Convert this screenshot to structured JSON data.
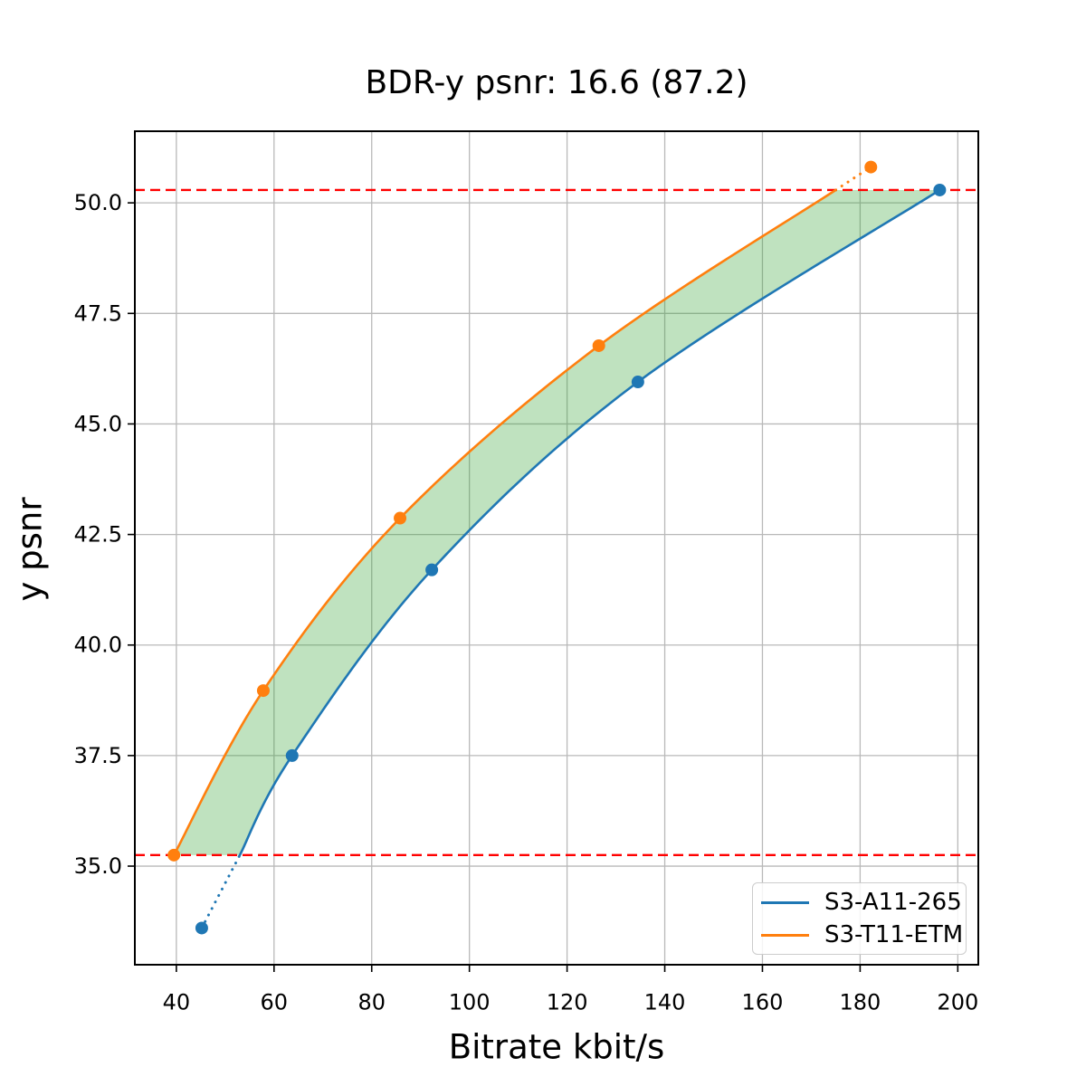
{
  "figure": {
    "background": "#ffffff",
    "axes_border_color": "#000000"
  },
  "chart_data": {
    "type": "line",
    "title": "BDR-y psnr: 16.6 (87.2)",
    "xlabel": "Bitrate kbit/s",
    "ylabel": "y psnr",
    "xlim": [
      31.5,
      204.2
    ],
    "ylim": [
      32.77,
      51.62
    ],
    "grid": true,
    "grid_color": "#b9b9b9",
    "legend_position": "lower right",
    "xticks": [
      {
        "value": 40,
        "label": "40"
      },
      {
        "value": 60,
        "label": "60"
      },
      {
        "value": 80,
        "label": "80"
      },
      {
        "value": 100,
        "label": "100"
      },
      {
        "value": 120,
        "label": "120"
      },
      {
        "value": 140,
        "label": "140"
      },
      {
        "value": 160,
        "label": "160"
      },
      {
        "value": 180,
        "label": "180"
      },
      {
        "value": 200,
        "label": "200"
      }
    ],
    "yticks": [
      {
        "value": 35.0,
        "label": "35.0"
      },
      {
        "value": 37.5,
        "label": "37.5"
      },
      {
        "value": 40.0,
        "label": "40.0"
      },
      {
        "value": 42.5,
        "label": "42.5"
      },
      {
        "value": 45.0,
        "label": "45.0"
      },
      {
        "value": 47.5,
        "label": "47.5"
      },
      {
        "value": 50.0,
        "label": "50.0"
      }
    ],
    "hlines": [
      {
        "y": 35.25,
        "color": "#ff0000",
        "style": "dashed"
      },
      {
        "y": 50.29,
        "color": "#ff0000",
        "style": "dashed"
      }
    ],
    "fill_between": {
      "left_series": 1,
      "right_series": 0,
      "color": "#2ca02c",
      "opacity": 0.3,
      "y_from": 35.25,
      "y_to": 50.29
    },
    "series": [
      {
        "name": "S3-A11-265",
        "color": "#1f77b4",
        "points": [
          [
            45.2,
            33.6
          ],
          [
            63.7,
            37.5
          ],
          [
            92.3,
            41.7
          ],
          [
            134.5,
            45.95
          ],
          [
            196.3,
            50.29
          ]
        ],
        "solid_points": [
          [
            53.0,
            35.25
          ],
          [
            63.7,
            37.5
          ],
          [
            92.3,
            41.7
          ],
          [
            134.5,
            45.95
          ],
          [
            196.3,
            50.29
          ]
        ],
        "dotted_points": [
          [
            45.2,
            33.6
          ],
          [
            53.0,
            35.25
          ]
        ]
      },
      {
        "name": "S3-T11-ETM",
        "color": "#ff7f0e",
        "points": [
          [
            39.5,
            35.25
          ],
          [
            57.8,
            38.97
          ],
          [
            85.8,
            42.87
          ],
          [
            126.5,
            46.77
          ],
          [
            182.2,
            50.81
          ]
        ],
        "solid_points": [
          [
            39.5,
            35.25
          ],
          [
            57.8,
            38.97
          ],
          [
            85.8,
            42.87
          ],
          [
            126.5,
            46.77
          ],
          [
            175.0,
            50.29
          ]
        ],
        "dotted_points": [
          [
            175.0,
            50.29
          ],
          [
            182.2,
            50.81
          ]
        ]
      }
    ]
  }
}
